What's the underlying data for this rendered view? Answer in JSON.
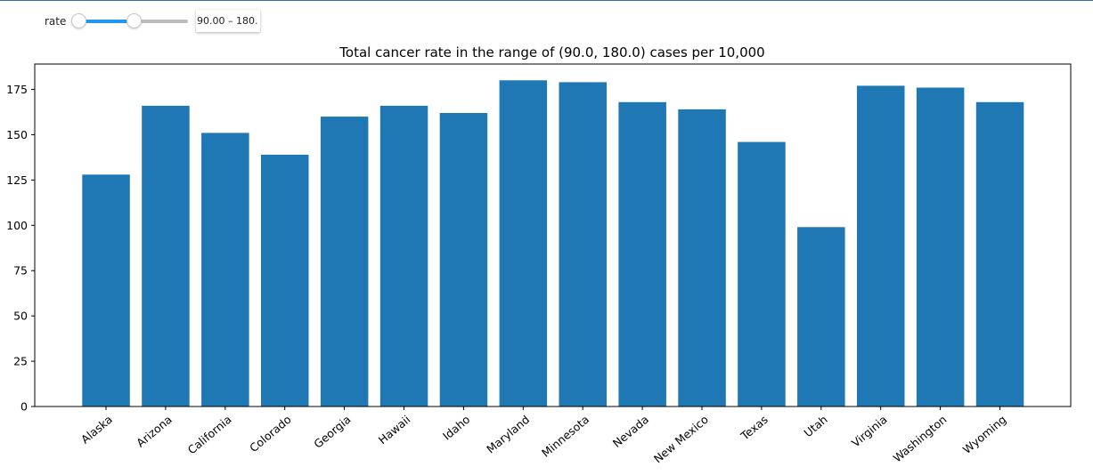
{
  "controls": {
    "slider_label": "rate",
    "range_min": 90,
    "range_max": 180,
    "slider_low_fraction": 0.0,
    "slider_high_fraction": 0.5,
    "readout": "90.00 – 180."
  },
  "colors": {
    "bar": "#1f77b4",
    "accent": "#2196f3"
  },
  "chart_data": {
    "type": "bar",
    "title": "Total cancer rate in the range of (90.0, 180.0) cases per 10,000",
    "xlabel": "",
    "ylabel": "",
    "categories": [
      "Alaska",
      "Arizona",
      "California",
      "Colorado",
      "Georgia",
      "Hawaii",
      "Idaho",
      "Maryland",
      "Minnesota",
      "Nevada",
      "New Mexico",
      "Texas",
      "Utah",
      "Virginia",
      "Washington",
      "Wyoming"
    ],
    "values": [
      128,
      166,
      151,
      139,
      160,
      166,
      162,
      180,
      179,
      168,
      164,
      146,
      99,
      177,
      176,
      168
    ],
    "yticks": [
      0,
      25,
      50,
      75,
      100,
      125,
      150,
      175
    ],
    "ylim": [
      0,
      189
    ],
    "grid": false,
    "legend": "none"
  }
}
